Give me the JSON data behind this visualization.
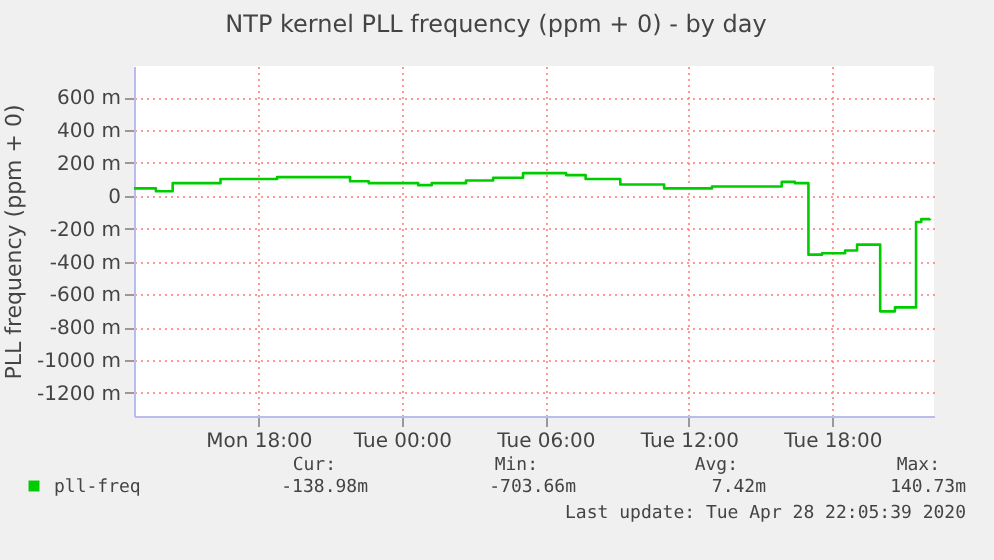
{
  "chart_data": {
    "type": "step",
    "title": "NTP kernel PLL frequency (ppm + 0) - by day",
    "ylabel": "PLL frequency (ppm + 0)",
    "series": [
      {
        "name": "pll-freq",
        "color": "#00cc00",
        "x": [
          "2020-04-27T12:48",
          "2020-04-27T13:43",
          "2020-04-27T14:25",
          "2020-04-27T16:25",
          "2020-04-27T18:47",
          "2020-04-27T21:50",
          "2020-04-27T22:37",
          "2020-04-28T00:41",
          "2020-04-28T01:15",
          "2020-04-28T02:41",
          "2020-04-28T03:49",
          "2020-04-28T05:04",
          "2020-04-28T06:52",
          "2020-04-28T07:41",
          "2020-04-28T09:08",
          "2020-04-28T10:58",
          "2020-04-28T12:58",
          "2020-04-28T15:53",
          "2020-04-28T16:26",
          "2020-04-28T17:00",
          "2020-04-28T17:34",
          "2020-04-28T18:32",
          "2020-04-28T19:02",
          "2020-04-28T20:00",
          "2020-04-28T20:37",
          "2020-04-28T21:30",
          "2020-04-28T21:43",
          "2020-04-28T22:05"
        ],
        "values": [
          45,
          28,
          77,
          102,
          114,
          89,
          77,
          65,
          77,
          93,
          110,
          138,
          126,
          102,
          69,
          45,
          57,
          85,
          77,
          -358,
          -350,
          -333,
          -297,
          -703,
          -679,
          -159,
          -142,
          -139
        ]
      }
    ],
    "xlim": [
      "2020-04-27T12:48",
      "2020-04-28T22:15"
    ],
    "xticks": [
      {
        "value": "2020-04-27T18:00",
        "label": "Mon 18:00"
      },
      {
        "value": "2020-04-28T00:00",
        "label": "Tue 00:00"
      },
      {
        "value": "2020-04-28T06:00",
        "label": "Tue 06:00"
      },
      {
        "value": "2020-04-28T12:00",
        "label": "Tue 12:00"
      },
      {
        "value": "2020-04-28T18:00",
        "label": "Tue 18:00"
      }
    ],
    "ylim": [
      -1340,
      790
    ],
    "yticks": [
      {
        "value": 600,
        "label": "600 m"
      },
      {
        "value": 400,
        "label": "400 m"
      },
      {
        "value": 200,
        "label": "200 m"
      },
      0,
      {
        "value": -200,
        "label": "-200 m"
      },
      {
        "value": -400,
        "label": "-400 m"
      },
      {
        "value": -600,
        "label": "-600 m"
      },
      {
        "value": -800,
        "label": "-800 m"
      },
      {
        "value": -1000,
        "label": "-1000 m"
      },
      {
        "value": -1200,
        "label": "-1200 m"
      }
    ],
    "grid": true,
    "legend": "bottom",
    "annotations": [
      "Cur:",
      "Min:",
      "Avg:",
      "Max:",
      "-138.98m",
      "-703.66m",
      "7.42m",
      "140.73m",
      "Last update: Tue Apr 28 22:05:39 2020"
    ]
  }
}
